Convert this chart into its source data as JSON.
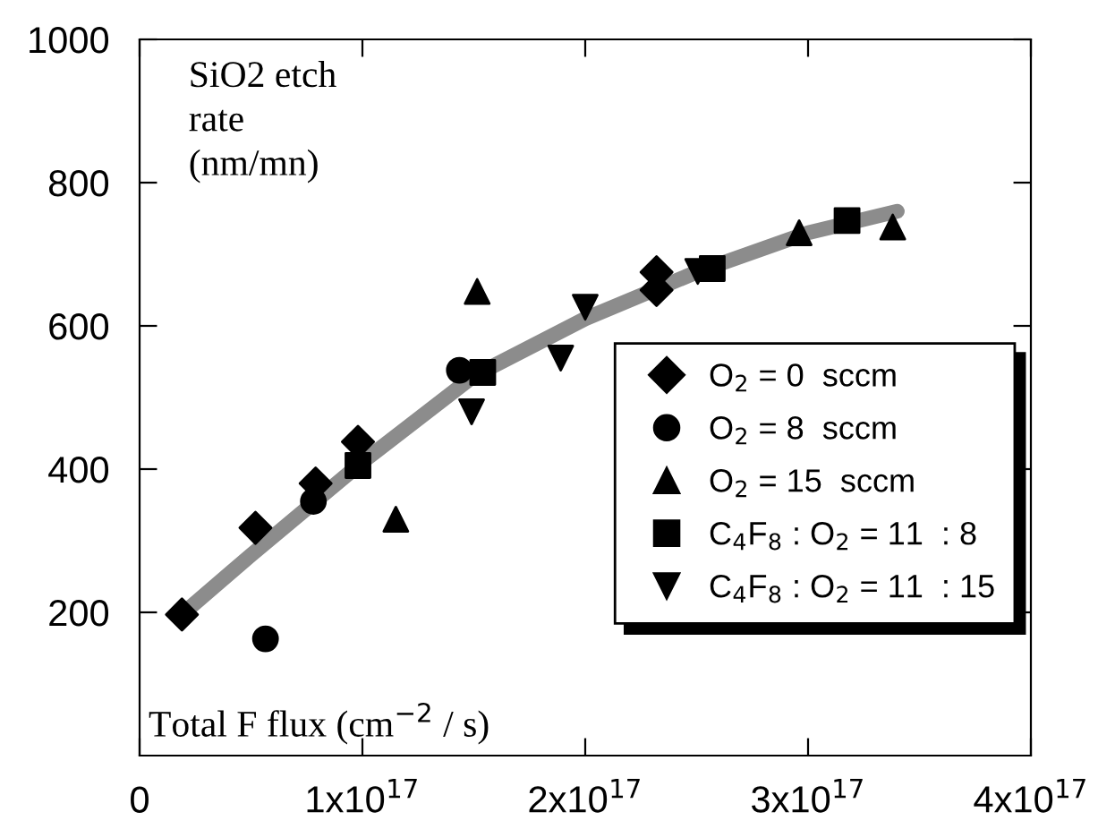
{
  "chart_data": {
    "type": "scatter",
    "xlabel": "Total F flux (cm$^{−2}$ / s)",
    "ylabel": "SiO2 etch\nrate\n(nm/mn)",
    "xlim": [
      0,
      4e+17
    ],
    "ylim": [
      0,
      1000
    ],
    "xticks": [
      0,
      {
        "value": 1e+17,
        "label": "1x10$^{17}$"
      },
      {
        "value": 2e+17,
        "label": "2x10$^{17}$"
      },
      {
        "value": 3e+17,
        "label": "3x10$^{17}$"
      },
      {
        "value": 4e+17,
        "label": "4x10$^{17}$"
      }
    ],
    "yticks": [
      200,
      400,
      600,
      800,
      1000
    ],
    "grid": false,
    "legend": "right",
    "series": [
      {
        "type": "line",
        "color": "#8c8c8c",
        "marker": "none",
        "x": [
          1.9e+16,
          5e+16,
          1e+17,
          1.5e+17,
          2e+17,
          2.5e+17,
          3e+17,
          3.4e+17
        ],
        "values": [
          197,
          280,
          410,
          530,
          610,
          675,
          730,
          760
        ]
      },
      {
        "name": "O$_{2}$ = 0  sccm",
        "color": "#000000",
        "marker": "diamond",
        "x": [
          1.9e+16,
          5.2e+16,
          7.9e+16,
          9.8e+16,
          2.32e+17,
          2.32e+17
        ],
        "values": [
          197,
          318,
          380,
          438,
          650,
          675
        ]
      },
      {
        "name": "O$_{2}$ = 8  sccm",
        "color": "#000000",
        "marker": "circle",
        "x": [
          5.65e+16,
          7.8e+16,
          1.435e+17
        ],
        "values": [
          163,
          355,
          538
        ]
      },
      {
        "name": "O$_{2}$ = 15  sccm",
        "color": "#000000",
        "marker": "triangle",
        "x": [
          1.15e+17,
          1.515e+17,
          2.96e+17,
          3.38e+17
        ],
        "values": [
          330,
          648,
          730,
          738
        ]
      },
      {
        "name": "C$_{4}$F$_{8}$ : O$_{2}$ = 11  : 8",
        "color": "#000000",
        "marker": "square",
        "x": [
          9.8e+16,
          1.54e+17,
          2.57e+17,
          3.175e+17
        ],
        "values": [
          405,
          535,
          680,
          747
        ]
      },
      {
        "name": "C$_{4}$F$_{8}$ : O$_{2}$ = 11  : 15",
        "color": "#000000",
        "marker": "triangle_down",
        "x": [
          1.49e+17,
          1.89e+17,
          2e+17,
          2.505e+17
        ],
        "values": [
          480,
          555,
          626,
          676
        ]
      }
    ]
  }
}
